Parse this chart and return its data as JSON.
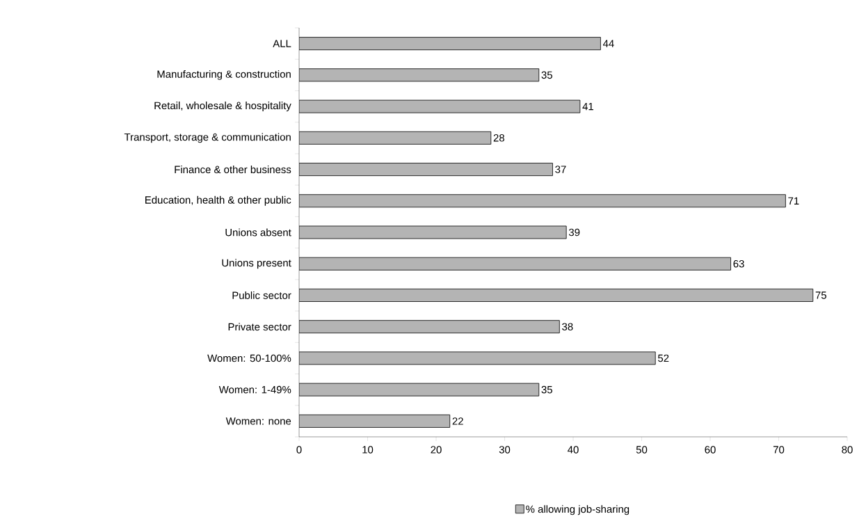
{
  "chart_data": {
    "type": "bar",
    "orientation": "horizontal",
    "categories": [
      "ALL",
      "Manufacturing & construction",
      "Retail, wholesale & hospitality",
      "Transport, storage & communication",
      "Finance & other business",
      "Education, health & other public",
      "Unions absent",
      "Unions present",
      "Public sector",
      "Private sector",
      "Women: 50-100%",
      "Women: 1-49%",
      "Women: none"
    ],
    "series": [
      {
        "name": "% allowing job-sharing",
        "color": "#b4b4b4",
        "values": [
          44,
          35,
          41,
          28,
          37,
          71,
          39,
          63,
          75,
          38,
          52,
          35,
          22
        ]
      }
    ],
    "xlim": [
      0,
      80
    ],
    "xticks": [
      0,
      10,
      20,
      30,
      40,
      50,
      60,
      70,
      80
    ],
    "data_labels": true,
    "legend": "bottom",
    "grid": false
  }
}
